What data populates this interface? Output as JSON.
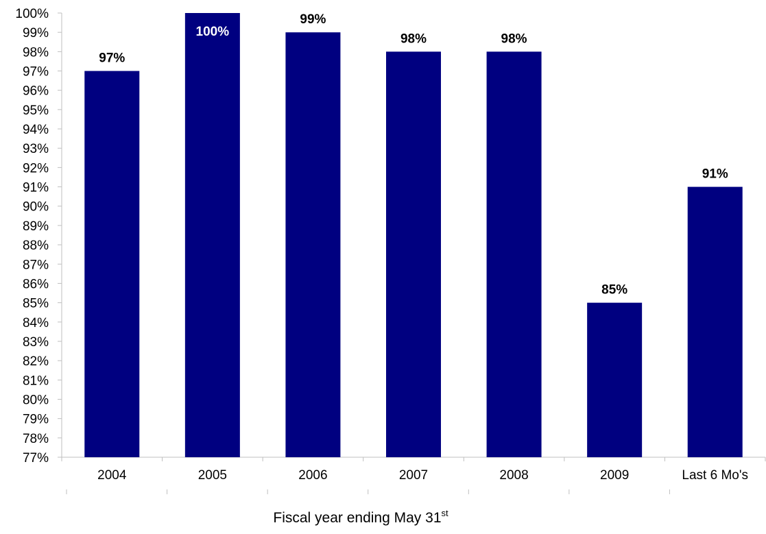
{
  "chart_data": {
    "type": "bar",
    "categories": [
      "2004",
      "2005",
      "2006",
      "2007",
      "2008",
      "2009",
      "Last 6 Mo's"
    ],
    "values": [
      97,
      100,
      99,
      98,
      98,
      85,
      91
    ],
    "data_labels": [
      "97%",
      "100%",
      "99%",
      "98%",
      "98%",
      "85%",
      "91%"
    ],
    "value_unit": "%",
    "title": "",
    "xlabel": "Fiscal year ending May 31",
    "xlabel_superscript": "st",
    "ylabel": "",
    "ylim": [
      77,
      100
    ],
    "ytick_step": 1,
    "grid": false,
    "legend": "none",
    "colors": {
      "bar": "#000080",
      "axis": "#bfbfbf",
      "label_outside": "#000000",
      "label_inside": "#ffffff"
    }
  }
}
